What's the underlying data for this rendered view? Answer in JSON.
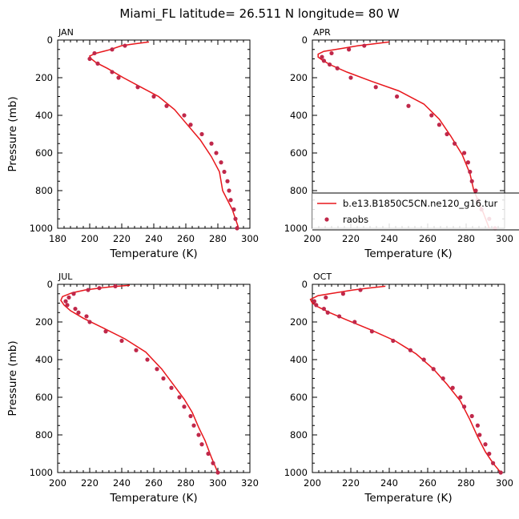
{
  "page_title": "Miami_FL  latitude= 26.511 N longitude= 80 W",
  "legend": {
    "model_label": "b.e13.B1850C5CN.ne120_g16.tur",
    "obs_label": "raobs",
    "model_color": "#e8161b",
    "obs_color": "#c0284a"
  },
  "chart_data": [
    {
      "type": "line",
      "panel": "JAN",
      "xlabel": "Temperature (K)",
      "ylabel": "Pressure (mb)",
      "xlim": [
        180,
        300
      ],
      "xticks": [
        180,
        200,
        220,
        240,
        260,
        280,
        300
      ],
      "ylim": [
        1000,
        0
      ],
      "yticks": [
        0,
        200,
        400,
        600,
        800,
        1000
      ],
      "series": [
        {
          "values": [
            [
              237,
              10
            ],
            [
              228,
              20
            ],
            [
              220,
              30
            ],
            [
              213,
              50
            ],
            [
              204,
              70
            ],
            [
              200,
              85
            ],
            [
              201,
              100
            ],
            [
              204,
              120
            ],
            [
              211,
              150
            ],
            [
              221,
              200
            ],
            [
              232,
              250
            ],
            [
              243,
              300
            ],
            [
              253,
              370
            ],
            [
              261,
              450
            ],
            [
              269,
              530
            ],
            [
              276,
              620
            ],
            [
              281,
              700
            ],
            [
              283,
              800
            ],
            [
              286,
              850
            ],
            [
              289,
              900
            ],
            [
              293,
              1000
            ]
          ]
        },
        {
          "points": [
            [
              222,
              30
            ],
            [
              214,
              50
            ],
            [
              203,
              70
            ],
            [
              200,
              100
            ],
            [
              205,
              125
            ],
            [
              214,
              170
            ],
            [
              218,
              200
            ],
            [
              230,
              250
            ],
            [
              240,
              300
            ],
            [
              248,
              350
            ],
            [
              259,
              400
            ],
            [
              263,
              450
            ],
            [
              270,
              500
            ],
            [
              276,
              550
            ],
            [
              279,
              600
            ],
            [
              282,
              650
            ],
            [
              284,
              700
            ],
            [
              286,
              750
            ],
            [
              287,
              800
            ],
            [
              288,
              850
            ],
            [
              290,
              900
            ],
            [
              291,
              950
            ],
            [
              292,
              1000
            ]
          ]
        }
      ]
    },
    {
      "type": "line",
      "panel": "APR",
      "xlabel": "Temperature (K)",
      "ylabel": "",
      "xlim": [
        200,
        300
      ],
      "xticks": [
        200,
        220,
        240,
        260,
        280,
        300
      ],
      "ylim": [
        1000,
        0
      ],
      "yticks": [
        0,
        200,
        400,
        600,
        800,
        1000
      ],
      "legend_position": "lower-right",
      "series": [
        {
          "values": [
            [
              240,
              10
            ],
            [
              232,
              20
            ],
            [
              224,
              30
            ],
            [
              215,
              45
            ],
            [
              206,
              60
            ],
            [
              203,
              75
            ],
            [
              203,
              90
            ],
            [
              205,
              105
            ],
            [
              209,
              130
            ],
            [
              218,
              170
            ],
            [
              231,
              220
            ],
            [
              245,
              270
            ],
            [
              258,
              340
            ],
            [
              266,
              420
            ],
            [
              272,
              510
            ],
            [
              278,
              610
            ],
            [
              282,
              710
            ],
            [
              284,
              800
            ],
            [
              287,
              870
            ],
            [
              289,
              920
            ],
            [
              292,
              1000
            ]
          ]
        },
        {
          "points": [
            [
              227,
              30
            ],
            [
              219,
              50
            ],
            [
              210,
              70
            ],
            [
              205,
              90
            ],
            [
              206,
              110
            ],
            [
              209,
              130
            ],
            [
              213,
              150
            ],
            [
              220,
              200
            ],
            [
              233,
              250
            ],
            [
              244,
              300
            ],
            [
              250,
              350
            ],
            [
              262,
              400
            ],
            [
              266,
              450
            ],
            [
              270,
              500
            ],
            [
              274,
              550
            ],
            [
              279,
              600
            ],
            [
              281,
              650
            ],
            [
              282,
              700
            ],
            [
              283,
              750
            ],
            [
              285,
              800
            ],
            [
              286,
              850
            ],
            [
              288,
              900
            ],
            [
              292,
              950
            ],
            [
              295,
              1000
            ]
          ]
        }
      ]
    },
    {
      "type": "line",
      "panel": "JUL",
      "xlabel": "Temperature (K)",
      "ylabel": "Pressure (mb)",
      "xlim": [
        200,
        320
      ],
      "xticks": [
        200,
        220,
        240,
        260,
        280,
        300,
        320
      ],
      "ylim": [
        1000,
        0
      ],
      "yticks": [
        0,
        200,
        400,
        600,
        800,
        1000
      ],
      "series": [
        {
          "values": [
            [
              245,
              5
            ],
            [
              235,
              12
            ],
            [
              226,
              20
            ],
            [
              217,
              30
            ],
            [
              209,
              45
            ],
            [
              203,
              65
            ],
            [
              202,
              85
            ],
            [
              204,
              110
            ],
            [
              208,
              140
            ],
            [
              216,
              180
            ],
            [
              228,
              230
            ],
            [
              242,
              290
            ],
            [
              255,
              360
            ],
            [
              265,
              450
            ],
            [
              272,
              530
            ],
            [
              279,
              610
            ],
            [
              284,
              680
            ],
            [
              288,
              760
            ],
            [
              292,
              830
            ],
            [
              296,
              920
            ],
            [
              300,
              1000
            ]
          ]
        },
        {
          "points": [
            [
              236,
              10
            ],
            [
              226,
              20
            ],
            [
              219,
              30
            ],
            [
              210,
              50
            ],
            [
              207,
              70
            ],
            [
              205,
              90
            ],
            [
              206,
              110
            ],
            [
              211,
              130
            ],
            [
              213,
              150
            ],
            [
              218,
              170
            ],
            [
              220,
              200
            ],
            [
              230,
              250
            ],
            [
              240,
              300
            ],
            [
              249,
              350
            ],
            [
              256,
              400
            ],
            [
              262,
              450
            ],
            [
              266,
              500
            ],
            [
              271,
              550
            ],
            [
              276,
              600
            ],
            [
              279,
              650
            ],
            [
              283,
              700
            ],
            [
              285,
              750
            ],
            [
              288,
              800
            ],
            [
              290,
              850
            ],
            [
              294,
              900
            ],
            [
              297,
              950
            ],
            [
              300,
              1000
            ]
          ]
        }
      ]
    },
    {
      "type": "line",
      "panel": "OCT",
      "xlabel": "Temperature (K)",
      "ylabel": "",
      "xlim": [
        200,
        300
      ],
      "xticks": [
        200,
        220,
        240,
        260,
        280,
        300
      ],
      "ylim": [
        1000,
        0
      ],
      "yticks": [
        0,
        200,
        400,
        600,
        800,
        1000
      ],
      "series": [
        {
          "values": [
            [
              238,
              10
            ],
            [
              229,
              20
            ],
            [
              221,
              30
            ],
            [
              212,
              45
            ],
            [
              203,
              60
            ],
            [
              199,
              80
            ],
            [
              200,
              100
            ],
            [
              203,
              120
            ],
            [
              209,
              150
            ],
            [
              218,
              190
            ],
            [
              230,
              240
            ],
            [
              243,
              300
            ],
            [
              254,
              370
            ],
            [
              263,
              450
            ],
            [
              270,
              530
            ],
            [
              277,
              620
            ],
            [
              282,
              720
            ],
            [
              286,
              810
            ],
            [
              290,
              890
            ],
            [
              294,
              950
            ],
            [
              298,
              1000
            ]
          ]
        },
        {
          "points": [
            [
              225,
              30
            ],
            [
              216,
              50
            ],
            [
              207,
              70
            ],
            [
              201,
              90
            ],
            [
              202,
              110
            ],
            [
              206,
              130
            ],
            [
              208,
              150
            ],
            [
              214,
              170
            ],
            [
              222,
              200
            ],
            [
              231,
              250
            ],
            [
              242,
              300
            ],
            [
              251,
              350
            ],
            [
              258,
              400
            ],
            [
              263,
              450
            ],
            [
              268,
              500
            ],
            [
              273,
              550
            ],
            [
              277,
              600
            ],
            [
              279,
              650
            ],
            [
              283,
              700
            ],
            [
              286,
              750
            ],
            [
              287,
              800
            ],
            [
              290,
              850
            ],
            [
              292,
              900
            ],
            [
              294,
              950
            ],
            [
              298,
              1000
            ]
          ]
        }
      ]
    }
  ]
}
